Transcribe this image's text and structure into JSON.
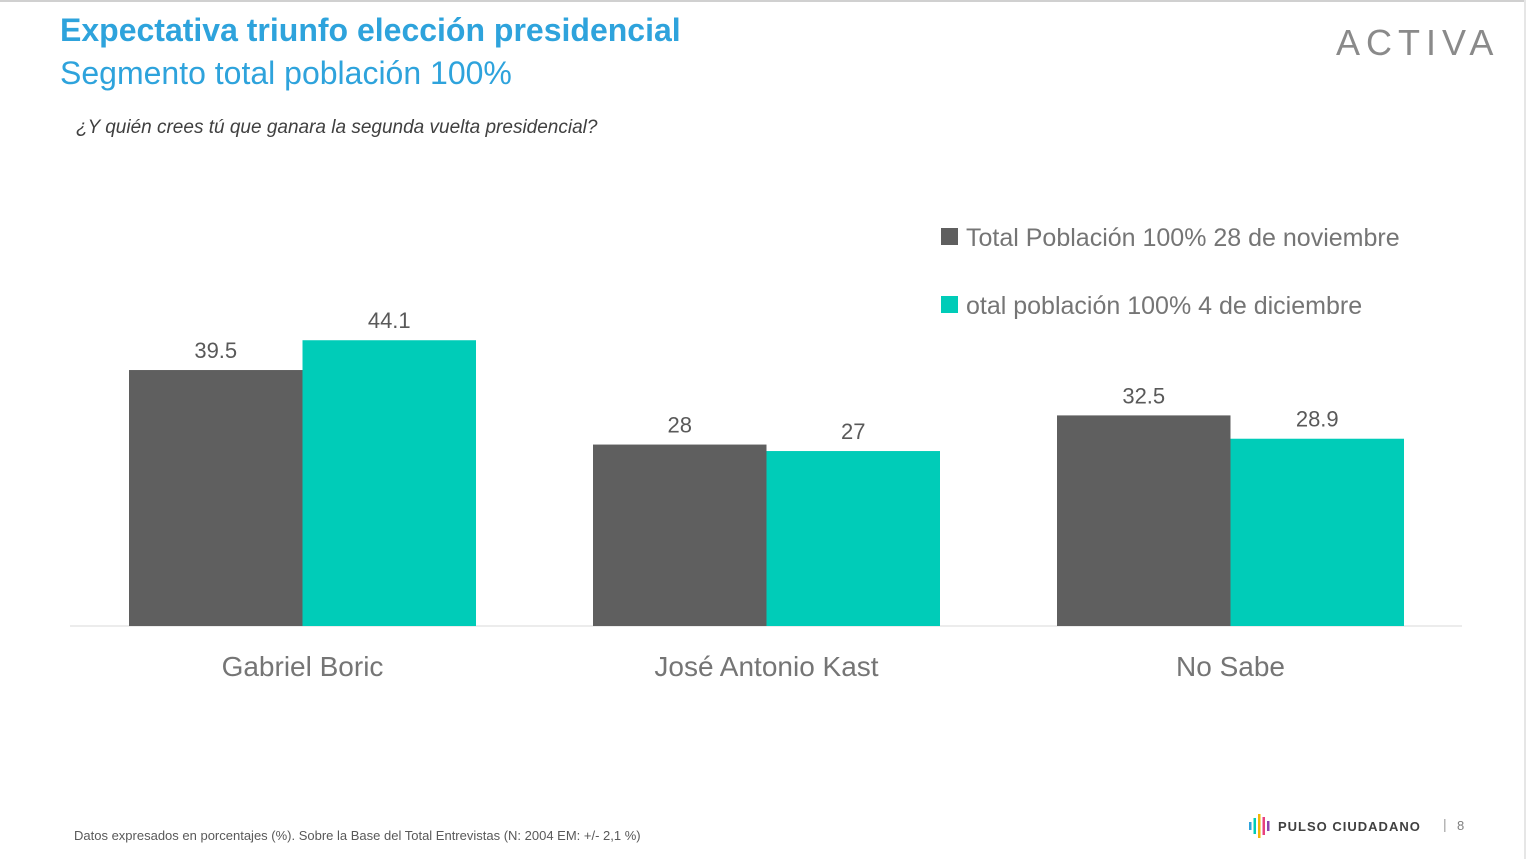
{
  "header": {
    "title": "Expectativa triunfo elección presidencial",
    "subtitle": "Segmento total población 100%",
    "question": "¿Y quién crees tú que ganara la segunda vuelta presidencial?"
  },
  "logo": {
    "text": "ACTIVA"
  },
  "footer": {
    "note": "Datos expresados en porcentajes (%). Sobre la Base del Total Entrevistas (N: 2004  EM: +/- 2,1 %)",
    "brand": "PULSO CIUDADANO",
    "separator": "|",
    "page": "8"
  },
  "colors": {
    "title": "#2ea3dc",
    "series1": "#5f5f5f",
    "series2": "#00ccb8"
  },
  "chart_data": {
    "type": "bar",
    "categories": [
      "Gabriel Boric",
      "José Antonio Kast",
      "No Sabe"
    ],
    "series": [
      {
        "name": "Total Población 100% 28 de noviembre",
        "values": [
          39.5,
          28,
          32.5
        ],
        "color": "#5f5f5f"
      },
      {
        "name": "otal población 100% 4 de diciembre",
        "values": [
          44.1,
          27,
          28.9
        ],
        "color": "#00ccb8"
      }
    ],
    "ylim": [
      0,
      50
    ],
    "grid": false,
    "legend": "top-right"
  }
}
